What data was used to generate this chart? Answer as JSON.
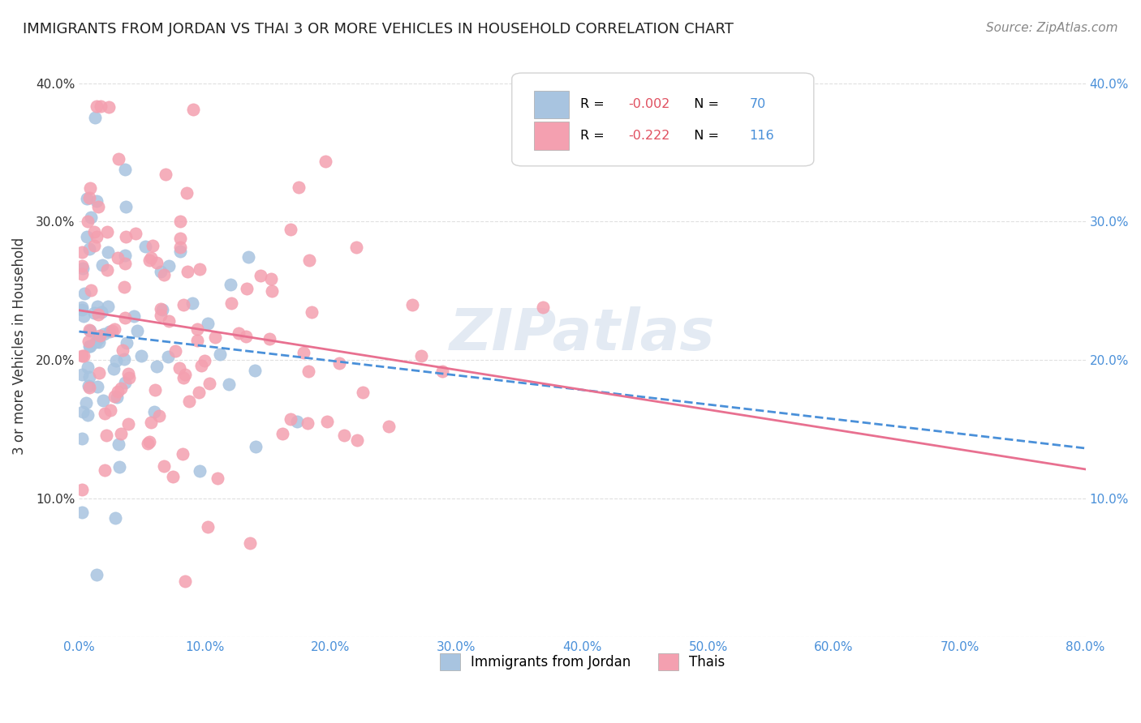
{
  "title": "IMMIGRANTS FROM JORDAN VS THAI 3 OR MORE VEHICLES IN HOUSEHOLD CORRELATION CHART",
  "source": "Source: ZipAtlas.com",
  "ylabel": "3 or more Vehicles in Household",
  "legend_jordan": "Immigrants from Jordan",
  "legend_thai": "Thais",
  "jordan_R": "-0.002",
  "jordan_N": "70",
  "thai_R": "-0.222",
  "thai_N": "116",
  "jordan_color": "#a8c4e0",
  "thai_color": "#f4a0b0",
  "jordan_line_color": "#4a90d9",
  "thai_line_color": "#e87090",
  "watermark": "ZIPatlas",
  "xlim": [
    0.0,
    0.8
  ],
  "ylim": [
    0.0,
    0.42
  ],
  "yticks": [
    0.0,
    0.1,
    0.2,
    0.3,
    0.4
  ],
  "xticks": [
    0.0,
    0.1,
    0.2,
    0.3,
    0.4,
    0.5,
    0.6,
    0.7,
    0.8
  ]
}
